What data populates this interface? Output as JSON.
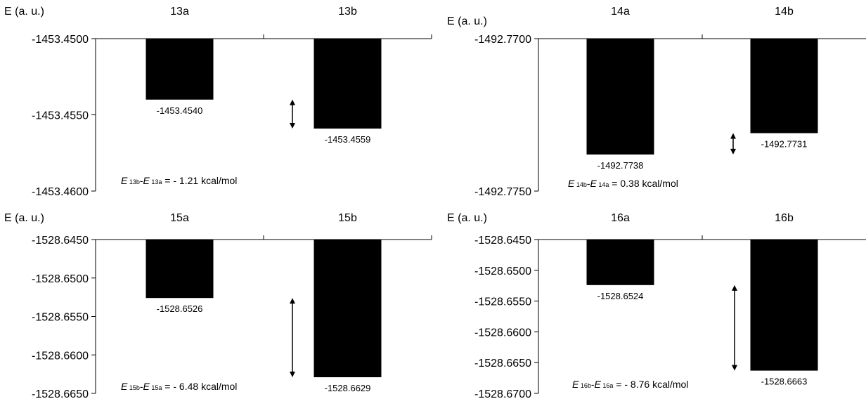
{
  "chart_data": [
    {
      "type": "bar",
      "ylabel": "E (a. u.)",
      "categories": [
        "13a",
        "13b"
      ],
      "values": [
        -1453.454,
        -1453.4559
      ],
      "value_labels": [
        "-1453.4540",
        "-1453.4559"
      ],
      "ylim": [
        -1453.46,
        -1453.45
      ],
      "yticks": [
        "-1453.4500",
        "-1453.4550",
        "-1453.4600"
      ],
      "annotation": {
        "e1": "E",
        "s1": "13b",
        "dash": "-",
        "e2": "E",
        "s2": "13a",
        "rest": " = - 1.21 kcal/mol"
      },
      "arrow_color": "#000000"
    },
    {
      "type": "bar",
      "ylabel": "E (a. u.)",
      "categories": [
        "14a",
        "14b"
      ],
      "values": [
        -1492.7738,
        -1492.7731
      ],
      "value_labels": [
        "-1492.7738",
        "-1492.7731"
      ],
      "ylim": [
        -1492.775,
        -1492.77
      ],
      "yticks": [
        "-1492.7700",
        "-1492.7750"
      ],
      "annotation": {
        "e1": "E",
        "s1": "14b",
        "dash": "-",
        "e2": "E",
        "s2": "14a",
        "rest": " = 0.38 kcal/mol"
      },
      "arrow_color": "#000000"
    },
    {
      "type": "bar",
      "ylabel": "E (a. u.)",
      "categories": [
        "15a",
        "15b"
      ],
      "values": [
        -1528.6526,
        -1528.6629
      ],
      "value_labels": [
        "-1528.6526",
        "-1528.6629"
      ],
      "ylim": [
        -1528.665,
        -1528.645
      ],
      "yticks": [
        "-1528.6450",
        "-1528.6500",
        "-1528.6550",
        "-1528.6600",
        "-1528.6650"
      ],
      "annotation": {
        "e1": "E",
        "s1": "15b",
        "dash": "-",
        "e2": "E",
        "s2": "15a",
        "rest": " = - 6.48 kcal/mol"
      },
      "arrow_color": "#000000"
    },
    {
      "type": "bar",
      "ylabel": "E (a. u.)",
      "categories": [
        "16a",
        "16b"
      ],
      "values": [
        -1528.6524,
        -1528.6663
      ],
      "value_labels": [
        "-1528.6524",
        "-1528.6663"
      ],
      "ylim": [
        -1528.67,
        -1528.645
      ],
      "yticks": [
        "-1528.6450",
        "-1528.6500",
        "-1528.6550",
        "-1528.6600",
        "-1528.6650",
        "-1528.6700"
      ],
      "annotation": {
        "e1": "E",
        "s1": "16b",
        "dash": "-",
        "e2": "E",
        "s2": "16a",
        "rest": " = - 8.76 kcal/mol"
      },
      "arrow_color": "#000000"
    }
  ]
}
